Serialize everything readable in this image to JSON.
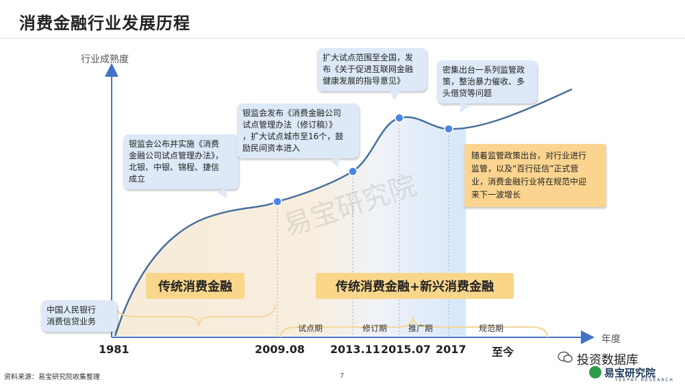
{
  "title": "消费金融行业发展历程",
  "y_axis_label": "行业成熟度",
  "x_axis_label": "年度",
  "timeline": [
    "1981",
    "2009.08",
    "2013.11",
    "2015.07",
    "2017",
    "至今"
  ],
  "stage_labels": {
    "traditional": "传统消费金融",
    "combined": "传统消费金融+新兴消费金融"
  },
  "phases": [
    "试点期",
    "修订期",
    "推广期",
    "规范期"
  ],
  "callouts": {
    "c1981": "中国人民银行\n消费信贷业务",
    "c2009": "银监会公布并实施《消费\n金融公司试点管理办法》，\n北银、中银、锦程、捷信\n成立",
    "c2013": "银监会发布《消费金融公司\n试点管理办法（修订稿）》\n，扩大试点城市至16个，鼓\n励民间资本进入",
    "c2015": "扩大试点范围至全国，发\n布《关于促进互联网金融\n健康发展的指导意见》",
    "c2017": "密集出台一系列监管政\n策，整治暴力催收、多\n头借贷等问题"
  },
  "note": "随着监管政策出台，对行业进行\n监管，以及“百行征信”正式营\n业，消费金融行业将在规范中迎\n来下一波增长",
  "watermark": "易宝研究院",
  "footer": {
    "source": "资料来源：易宝研究院收集整理",
    "page": "7",
    "wechat": "投资数据库",
    "brand": "易宝研究院",
    "brand_sub": "YEEPAY RESEARCH"
  },
  "colors": {
    "curve": "#466e9c",
    "axis": "#4472c4",
    "dot": "#4a86e8",
    "callout_bg": "#dde9f7",
    "stage_bg": "#f9d68a",
    "bracket": "#f3d79a"
  }
}
